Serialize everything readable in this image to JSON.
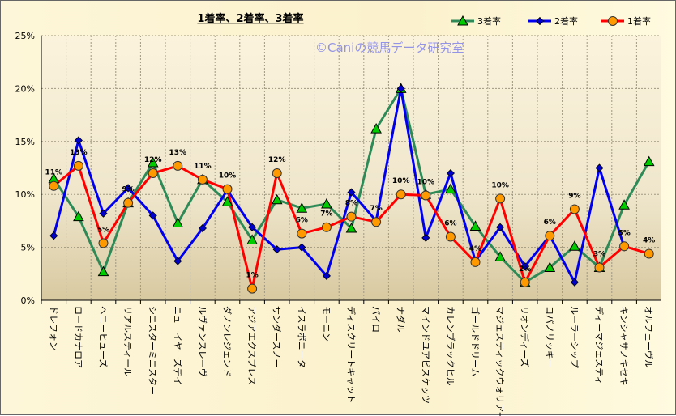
{
  "chart_data": {
    "type": "line",
    "title": "1着率、2着率、3着率",
    "watermark": "©Caniの競馬データ研究室",
    "xlabel": "",
    "ylabel": "",
    "ylim": [
      0,
      25
    ],
    "yticks": [
      "0%",
      "5%",
      "10%",
      "15%",
      "20%",
      "25%"
    ],
    "grid": true,
    "legend_position": "top-right",
    "categories": [
      "ドレフォン",
      "ロードカナロア",
      "ヘニーヒューズ",
      "リアルスティール",
      "シニスターミニスター",
      "ニューイヤーズデイ",
      "ルヴァンスレーヴ",
      "ダノンレジェンド",
      "アジアエクスプレス",
      "サンダースノー",
      "イスラボニータ",
      "モーニン",
      "ディスクリートキャット",
      "パイロ",
      "ナダル",
      "マインドユアビスケッツ",
      "カレンブラックヒル",
      "ゴールドドリーム",
      "マジェスティックウォリアー",
      "リオンディーズ",
      "コパノリッキー",
      "ルーラーシップ",
      "ディーマジェスティ",
      "キンシャサノキセキ",
      "オルフェーヴル"
    ],
    "series": [
      {
        "name": "3着率",
        "color": "#2e8b57",
        "marker": "triangle",
        "marker_color": "#00cc00",
        "values": [
          11.5,
          7.9,
          2.7,
          9.2,
          13.0,
          7.3,
          11.4,
          9.3,
          5.7,
          9.5,
          8.7,
          9.1,
          6.8,
          16.2,
          20.0,
          10.0,
          10.5,
          7.0,
          4.1,
          1.7,
          3.1,
          5.1,
          3.1,
          9.0,
          13.1
        ]
      },
      {
        "name": "2着率",
        "color": "#0000ee",
        "marker": "diamond",
        "marker_color": "#0000cc",
        "values": [
          6.1,
          15.1,
          8.2,
          10.6,
          8.0,
          3.7,
          6.8,
          10.4,
          6.9,
          4.8,
          5.0,
          2.3,
          10.2,
          7.5,
          20.0,
          5.9,
          12.0,
          3.7,
          6.9,
          3.2,
          6.1,
          1.7,
          12.5,
          5.0,
          null
        ]
      },
      {
        "name": "1着率",
        "color": "#ff0000",
        "marker": "circle",
        "marker_color": "#ff9900",
        "values": [
          10.8,
          12.7,
          5.4,
          9.2,
          12.0,
          12.7,
          11.4,
          10.5,
          1.1,
          12.0,
          6.3,
          6.9,
          7.9,
          7.4,
          10.0,
          9.9,
          6.0,
          3.6,
          9.6,
          1.7,
          6.1,
          8.6,
          3.1,
          5.1,
          4.4
        ],
        "labels": [
          "11%",
          "13%",
          "5%",
          "9%",
          "12%",
          "13%",
          "11%",
          "10%",
          "1%",
          "12%",
          "6%",
          "7%",
          "8%",
          "7%",
          "10%",
          "10%",
          "6%",
          "4%",
          "10%",
          "2%",
          "6%",
          "9%",
          "3%",
          "5%",
          "4%"
        ]
      }
    ]
  }
}
